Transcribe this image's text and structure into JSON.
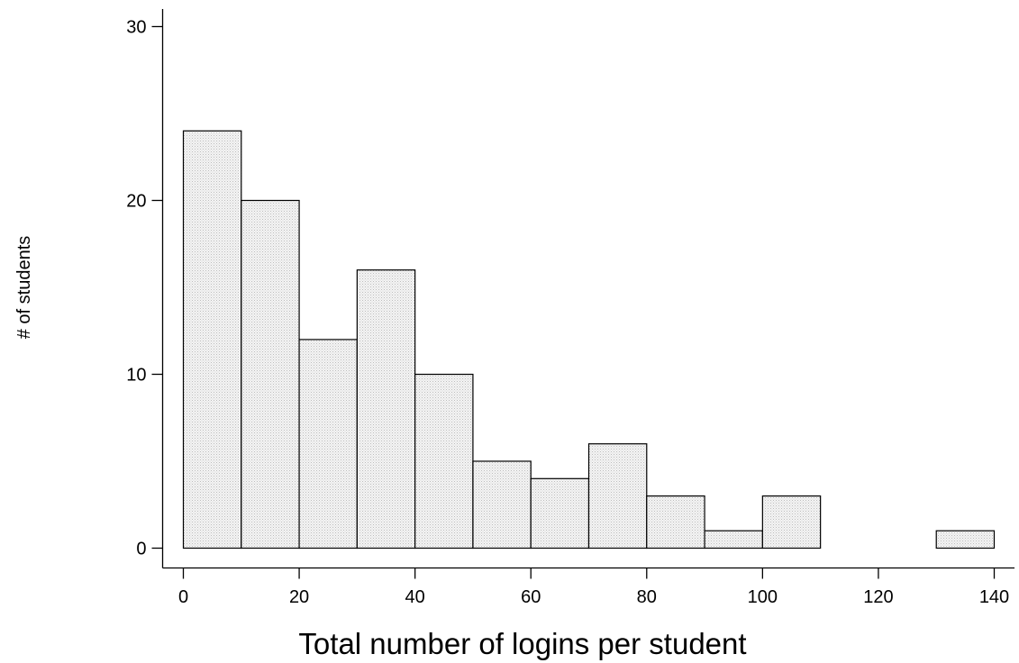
{
  "chart_data": {
    "type": "bar",
    "subtype": "histogram",
    "xlabel": "Total number of logins per student",
    "ylabel": "# of students",
    "xlim": [
      0,
      140
    ],
    "ylim": [
      0,
      30
    ],
    "xticks": [
      0,
      20,
      40,
      60,
      80,
      100,
      120,
      140
    ],
    "yticks": [
      0,
      10,
      20,
      30
    ],
    "bin_width": 10,
    "bins": [
      {
        "start": 0,
        "end": 10,
        "count": 24
      },
      {
        "start": 10,
        "end": 20,
        "count": 20
      },
      {
        "start": 20,
        "end": 30,
        "count": 12
      },
      {
        "start": 30,
        "end": 40,
        "count": 16
      },
      {
        "start": 40,
        "end": 50,
        "count": 10
      },
      {
        "start": 50,
        "end": 60,
        "count": 5
      },
      {
        "start": 60,
        "end": 70,
        "count": 4
      },
      {
        "start": 70,
        "end": 80,
        "count": 6
      },
      {
        "start": 80,
        "end": 90,
        "count": 3
      },
      {
        "start": 90,
        "end": 100,
        "count": 1
      },
      {
        "start": 100,
        "end": 110,
        "count": 3
      },
      {
        "start": 130,
        "end": 140,
        "count": 1
      }
    ],
    "bar_fill": "#ececec",
    "bar_stroke": "#000000",
    "grid": false,
    "legend": "none"
  }
}
